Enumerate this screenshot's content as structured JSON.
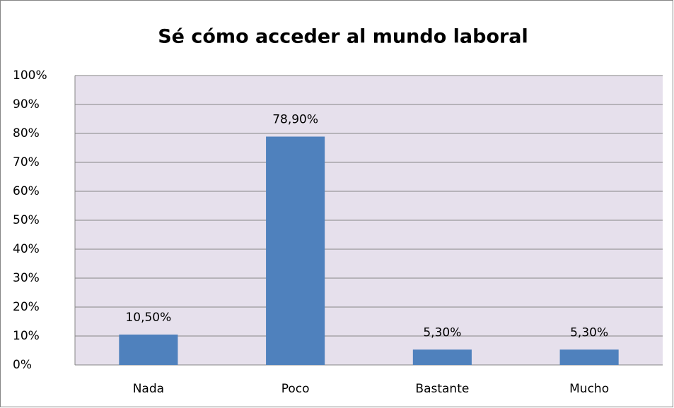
{
  "chart_data": {
    "type": "bar",
    "title": "Sé cómo acceder al mundo laboral",
    "categories": [
      "Nada",
      "Poco",
      "Bastante",
      "Mucho"
    ],
    "values": [
      10.5,
      78.9,
      5.3,
      5.3
    ],
    "value_labels": [
      "10,50%",
      "78,90%",
      "5,30%",
      "5,30%"
    ],
    "color": "#4f81bd",
    "ylim": [
      0,
      100
    ],
    "yticks": [
      {
        "value": 0,
        "label": "0%"
      },
      {
        "value": 10,
        "label": "10%"
      },
      {
        "value": 20,
        "label": "20%"
      },
      {
        "value": 30,
        "label": "30%"
      },
      {
        "value": 40,
        "label": "40%"
      },
      {
        "value": 50,
        "label": "50%"
      },
      {
        "value": 60,
        "label": "60%"
      },
      {
        "value": 70,
        "label": "70%"
      },
      {
        "value": 80,
        "label": "80%"
      },
      {
        "value": 90,
        "label": "90%"
      },
      {
        "value": 100,
        "label": "100%"
      }
    ],
    "grid": true
  }
}
